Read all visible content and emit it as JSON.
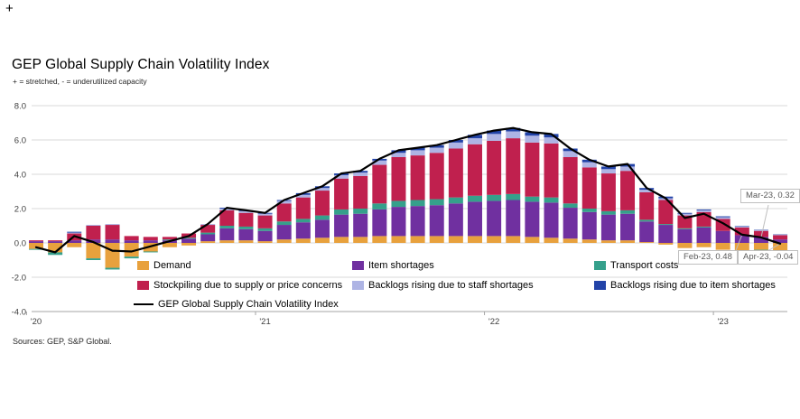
{
  "page": {
    "corner_glyph": "+",
    "title": "GEP Global Supply Chain Volatility Index",
    "subtitle": "+ = stretched, - = underutilized capacity",
    "source": "Sources: GEP, S&P Global."
  },
  "chart_data": {
    "type": "bar",
    "subtype": "stacked-bars-with-index-line",
    "title": "GEP Global Supply Chain Volatility Index",
    "subtitle": "+ = stretched, - = underutilized capacity",
    "ylim": [
      -4,
      8
    ],
    "grid": true,
    "legend_position": "bottom-inside",
    "yticks": [
      {
        "label": "8.0",
        "value": 8
      },
      {
        "label": "6.0",
        "value": 6
      },
      {
        "label": "4.0",
        "value": 4
      },
      {
        "label": "2.0",
        "value": 2
      },
      {
        "label": "0.0",
        "value": 0
      },
      {
        "label": "-2.0",
        "value": -2
      },
      {
        "label": "-4.0",
        "value": -4
      }
    ],
    "xticks": [
      {
        "label": "'20",
        "index": 0
      },
      {
        "label": "'21",
        "index": 12
      },
      {
        "label": "'22",
        "index": 24
      },
      {
        "label": "'23",
        "index": 36
      }
    ],
    "categories": [
      "Jan-20",
      "Feb-20",
      "Mar-20",
      "Apr-20",
      "May-20",
      "Jun-20",
      "Jul-20",
      "Aug-20",
      "Sep-20",
      "Oct-20",
      "Nov-20",
      "Dec-20",
      "Jan-21",
      "Feb-21",
      "Mar-21",
      "Apr-21",
      "May-21",
      "Jun-21",
      "Jul-21",
      "Aug-21",
      "Sep-21",
      "Oct-21",
      "Nov-21",
      "Dec-21",
      "Jan-22",
      "Feb-22",
      "Mar-22",
      "Apr-22",
      "May-22",
      "Jun-22",
      "Jul-22",
      "Aug-22",
      "Sep-22",
      "Oct-22",
      "Nov-22",
      "Dec-22",
      "Jan-23",
      "Feb-23",
      "Mar-23",
      "Apr-23"
    ],
    "series": [
      {
        "name": "Demand",
        "type": "bar",
        "color": "#E8A13D",
        "values": [
          -0.35,
          -0.55,
          -0.25,
          -0.9,
          -1.45,
          -0.8,
          -0.5,
          -0.25,
          -0.15,
          0.1,
          0.15,
          0.15,
          0.1,
          0.2,
          0.25,
          0.3,
          0.35,
          0.35,
          0.4,
          0.4,
          0.4,
          0.4,
          0.4,
          0.4,
          0.4,
          0.4,
          0.35,
          0.3,
          0.25,
          0.2,
          0.15,
          0.15,
          0.05,
          -0.1,
          -0.3,
          -0.25,
          -0.4,
          -0.45,
          -0.4,
          -0.45
        ]
      },
      {
        "name": "Item shortages",
        "type": "bar",
        "color": "#7030A0",
        "values": [
          0.1,
          0.1,
          0.15,
          0.2,
          0.2,
          0.15,
          0.15,
          0.15,
          0.25,
          0.4,
          0.7,
          0.65,
          0.6,
          0.85,
          0.95,
          1.05,
          1.3,
          1.35,
          1.55,
          1.7,
          1.75,
          1.8,
          1.9,
          2.0,
          2.05,
          2.1,
          2.05,
          2.05,
          1.8,
          1.6,
          1.5,
          1.55,
          1.2,
          1.05,
          0.8,
          0.9,
          0.7,
          0.45,
          0.35,
          0.2
        ]
      },
      {
        "name": "Transport costs",
        "type": "bar",
        "color": "#35A08B",
        "values": [
          -0.05,
          -0.15,
          0.0,
          -0.1,
          -0.1,
          -0.1,
          -0.05,
          0.05,
          0.05,
          0.1,
          0.15,
          0.15,
          0.15,
          0.2,
          0.2,
          0.25,
          0.3,
          0.3,
          0.35,
          0.35,
          0.35,
          0.35,
          0.35,
          0.35,
          0.35,
          0.35,
          0.3,
          0.3,
          0.25,
          0.2,
          0.2,
          0.2,
          0.1,
          0.05,
          0.05,
          0.05,
          0.0,
          -0.05,
          -0.05,
          -0.09
        ]
      },
      {
        "name": "Stockpiling due to supply or price concerns",
        "type": "bar",
        "color": "#C0204E",
        "values": [
          0.05,
          0.05,
          0.4,
          0.8,
          0.85,
          0.25,
          0.2,
          0.15,
          0.25,
          0.45,
          0.9,
          0.8,
          0.75,
          1.05,
          1.25,
          1.45,
          1.8,
          1.9,
          2.25,
          2.55,
          2.6,
          2.7,
          2.85,
          3.0,
          3.15,
          3.25,
          3.15,
          3.15,
          2.7,
          2.4,
          2.2,
          2.3,
          1.6,
          1.4,
          0.75,
          0.85,
          0.7,
          0.45,
          0.35,
          0.25
        ]
      },
      {
        "name": "Backlogs rising due to staff shortages",
        "type": "bar",
        "color": "#AEB4E4",
        "values": [
          0.0,
          0.0,
          0.05,
          0.05,
          0.05,
          0.0,
          0.0,
          0.0,
          0.0,
          0.05,
          0.1,
          0.1,
          0.1,
          0.15,
          0.15,
          0.15,
          0.2,
          0.2,
          0.25,
          0.25,
          0.3,
          0.3,
          0.35,
          0.35,
          0.4,
          0.4,
          0.4,
          0.35,
          0.35,
          0.3,
          0.25,
          0.25,
          0.15,
          0.1,
          0.1,
          0.1,
          0.1,
          0.05,
          0.05,
          0.03
        ]
      },
      {
        "name": "Backlogs rising due to item shortages",
        "type": "bar",
        "color": "#2243A8",
        "values": [
          0.0,
          0.0,
          0.05,
          0.0,
          0.0,
          0.0,
          0.0,
          0.0,
          0.0,
          0.0,
          0.05,
          0.05,
          0.05,
          0.05,
          0.1,
          0.1,
          0.1,
          0.1,
          0.1,
          0.15,
          0.15,
          0.15,
          0.15,
          0.2,
          0.2,
          0.2,
          0.2,
          0.2,
          0.15,
          0.15,
          0.15,
          0.15,
          0.1,
          0.1,
          0.05,
          0.05,
          0.05,
          0.03,
          0.02,
          0.02
        ]
      },
      {
        "name": "GEP Global Supply Chain Volatility Index",
        "type": "line",
        "color": "#000000",
        "values": [
          -0.25,
          -0.55,
          0.4,
          0.05,
          -0.45,
          -0.5,
          -0.2,
          0.1,
          0.4,
          1.1,
          2.05,
          1.9,
          1.75,
          2.5,
          2.9,
          3.3,
          4.05,
          4.2,
          4.9,
          5.4,
          5.55,
          5.7,
          6.0,
          6.3,
          6.55,
          6.7,
          6.45,
          6.35,
          5.5,
          4.85,
          4.45,
          4.6,
          3.2,
          2.6,
          1.45,
          1.7,
          1.15,
          0.48,
          0.32,
          -0.04
        ]
      }
    ],
    "annotations": [
      {
        "label": "Mar-23,  0.32",
        "month": "Mar-23",
        "value": 0.32,
        "index": 38
      },
      {
        "label": "Feb-23, 0.48",
        "month": "Feb-23",
        "value": 0.48,
        "index": 37
      },
      {
        "label": "Apr-23, -0.04",
        "month": "Apr-23",
        "value": -0.04,
        "index": 39
      }
    ]
  }
}
